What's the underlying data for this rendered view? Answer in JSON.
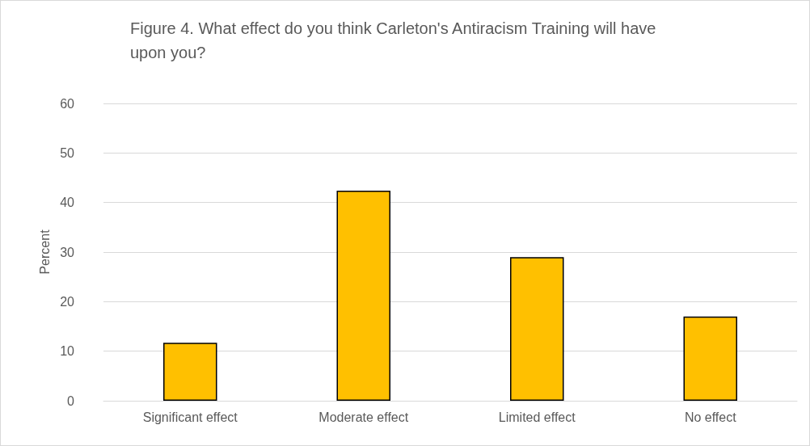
{
  "chart_data": {
    "type": "bar",
    "title": "Figure 4. What effect do you think Carleton's Antiracism Training will have upon you?",
    "ylabel": "Percent",
    "categories": [
      "Significant effect",
      "Moderate effect",
      "Limited effect",
      "No effect"
    ],
    "values": [
      11.7,
      42.4,
      29.0,
      17.0
    ],
    "color": "#ffc000",
    "ylim": [
      0,
      60
    ],
    "yticks": [
      0,
      10,
      20,
      30,
      40,
      50,
      60
    ],
    "grid": "y",
    "legend": false
  }
}
